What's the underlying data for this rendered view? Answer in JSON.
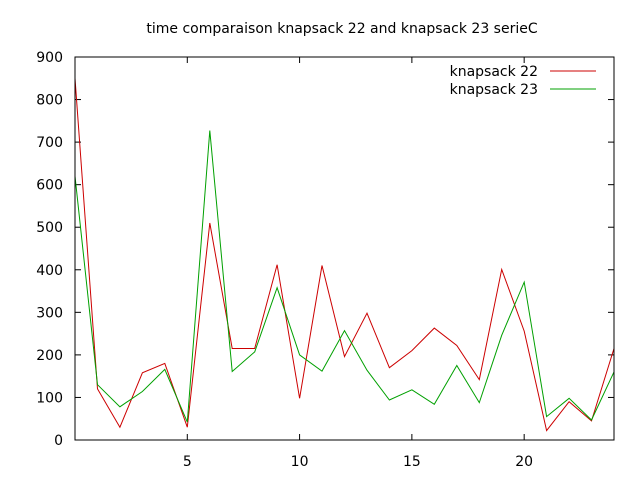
{
  "chart_data": {
    "type": "line",
    "title": "time comparaison knapsack 22 and knapsack 23 serieC",
    "xlabel": "",
    "ylabel": "",
    "xlim": [
      0,
      24
    ],
    "ylim": [
      0,
      900
    ],
    "x_ticks": [
      5,
      10,
      15,
      20
    ],
    "y_ticks": [
      0,
      100,
      200,
      300,
      400,
      500,
      600,
      700,
      800,
      900
    ],
    "grid": false,
    "legend_position": "top-right",
    "x": [
      0,
      1,
      2,
      3,
      4,
      5,
      6,
      7,
      8,
      9,
      10,
      11,
      12,
      13,
      14,
      15,
      16,
      17,
      18,
      19,
      20,
      21,
      22,
      23,
      24
    ],
    "series": [
      {
        "name": "knapsack 22",
        "color": "#cc0000",
        "values": [
          850,
          120,
          30,
          158,
          180,
          30,
          510,
          215,
          215,
          412,
          98,
          410,
          196,
          298,
          170,
          210,
          263,
          222,
          142,
          401,
          256,
          22,
          90,
          45,
          215
        ]
      },
      {
        "name": "knapsack 23",
        "color": "#00a000",
        "values": [
          620,
          130,
          78,
          114,
          166,
          42,
          727,
          161,
          207,
          358,
          200,
          162,
          257,
          164,
          94,
          118,
          84,
          175,
          88,
          246,
          371,
          55,
          98,
          47,
          160
        ]
      }
    ]
  }
}
